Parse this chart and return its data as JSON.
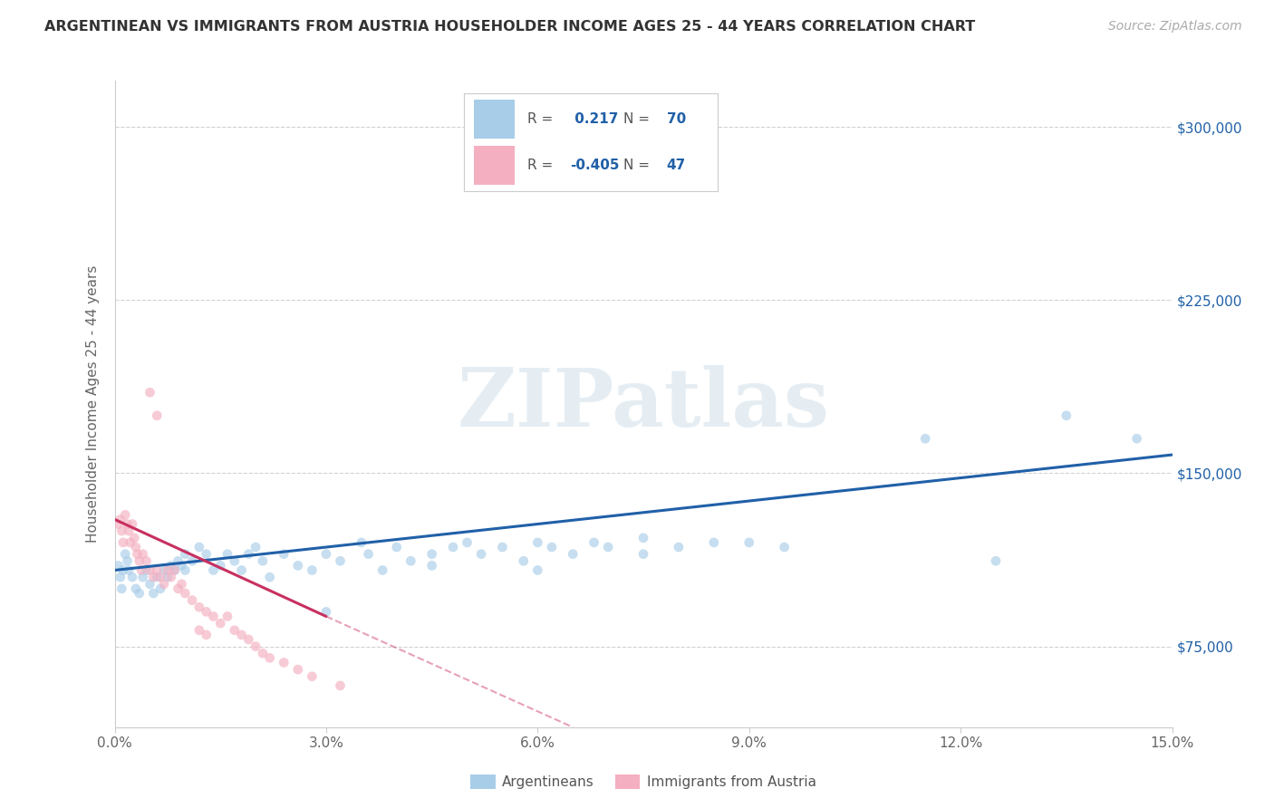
{
  "title": "ARGENTINEAN VS IMMIGRANTS FROM AUSTRIA HOUSEHOLDER INCOME AGES 25 - 44 YEARS CORRELATION CHART",
  "source": "Source: ZipAtlas.com",
  "ylabel": "Householder Income Ages 25 - 44 years",
  "xlim": [
    0.0,
    15.0
  ],
  "ylim": [
    40000,
    320000
  ],
  "yticks": [
    75000,
    150000,
    225000,
    300000
  ],
  "ytick_labels": [
    "$75,000",
    "$150,000",
    "$225,000",
    "$300,000"
  ],
  "xticks": [
    0.0,
    3.0,
    6.0,
    9.0,
    12.0,
    15.0
  ],
  "xtick_labels": [
    "0.0%",
    "3.0%",
    "6.0%",
    "9.0%",
    "12.0%",
    "15.0%"
  ],
  "r_blue": 0.217,
  "n_blue": 70,
  "r_pink": -0.405,
  "n_pink": 47,
  "blue_color": "#a8cde8",
  "pink_color": "#f4afc0",
  "blue_line_color": "#2060a8",
  "pink_line_color": "#c83060",
  "watermark_text": "ZIPatlas",
  "background_color": "#ffffff",
  "legend_label_blue": "Argentineans",
  "legend_label_pink": "Immigrants from Austria",
  "blue_scatter_x": [
    0.05,
    0.08,
    0.1,
    0.12,
    0.15,
    0.18,
    0.2,
    0.25,
    0.3,
    0.35,
    0.4,
    0.45,
    0.5,
    0.55,
    0.6,
    0.65,
    0.7,
    0.75,
    0.8,
    0.85,
    0.9,
    0.95,
    1.0,
    1.0,
    1.1,
    1.2,
    1.3,
    1.4,
    1.5,
    1.6,
    1.7,
    1.8,
    1.9,
    2.0,
    2.1,
    2.2,
    2.4,
    2.6,
    2.8,
    3.0,
    3.2,
    3.5,
    3.6,
    3.8,
    4.0,
    4.2,
    4.5,
    4.8,
    5.0,
    5.2,
    5.5,
    5.8,
    6.0,
    6.2,
    6.5,
    6.8,
    7.0,
    7.5,
    8.0,
    8.5,
    3.0,
    4.5,
    6.0,
    7.5,
    9.0,
    11.5,
    13.5,
    14.5,
    9.5,
    12.5
  ],
  "blue_scatter_y": [
    110000,
    105000,
    100000,
    108000,
    115000,
    112000,
    108000,
    105000,
    100000,
    98000,
    105000,
    108000,
    102000,
    98000,
    105000,
    100000,
    108000,
    105000,
    110000,
    108000,
    112000,
    110000,
    115000,
    108000,
    112000,
    118000,
    115000,
    108000,
    110000,
    115000,
    112000,
    108000,
    115000,
    118000,
    112000,
    105000,
    115000,
    110000,
    108000,
    115000,
    112000,
    120000,
    115000,
    108000,
    118000,
    112000,
    115000,
    118000,
    120000,
    115000,
    118000,
    112000,
    120000,
    118000,
    115000,
    120000,
    118000,
    122000,
    118000,
    120000,
    90000,
    110000,
    108000,
    115000,
    120000,
    165000,
    175000,
    165000,
    118000,
    112000
  ],
  "blue_scatter_size": [
    60,
    60,
    60,
    60,
    60,
    60,
    60,
    60,
    60,
    60,
    60,
    60,
    60,
    60,
    60,
    60,
    60,
    60,
    60,
    60,
    60,
    60,
    60,
    60,
    60,
    60,
    60,
    60,
    60,
    60,
    60,
    60,
    60,
    60,
    60,
    60,
    60,
    60,
    60,
    60,
    60,
    60,
    60,
    60,
    60,
    60,
    60,
    60,
    60,
    60,
    60,
    60,
    60,
    60,
    60,
    60,
    60,
    60,
    60,
    60,
    60,
    60,
    60,
    60,
    60,
    60,
    60,
    60,
    60,
    60
  ],
  "pink_scatter_x": [
    0.05,
    0.08,
    0.1,
    0.12,
    0.15,
    0.18,
    0.2,
    0.22,
    0.25,
    0.28,
    0.3,
    0.32,
    0.35,
    0.38,
    0.4,
    0.45,
    0.5,
    0.55,
    0.6,
    0.65,
    0.7,
    0.75,
    0.8,
    0.85,
    0.9,
    0.95,
    1.0,
    1.1,
    1.2,
    1.3,
    1.4,
    1.5,
    1.6,
    1.7,
    1.8,
    1.9,
    2.0,
    2.1,
    2.2,
    2.4,
    2.6,
    2.8,
    3.2,
    1.2,
    1.3,
    0.5,
    0.6
  ],
  "pink_scatter_y": [
    128000,
    130000,
    125000,
    120000,
    132000,
    128000,
    125000,
    120000,
    128000,
    122000,
    118000,
    115000,
    112000,
    108000,
    115000,
    112000,
    108000,
    105000,
    108000,
    105000,
    102000,
    108000,
    105000,
    108000,
    100000,
    102000,
    98000,
    95000,
    92000,
    90000,
    88000,
    85000,
    88000,
    82000,
    80000,
    78000,
    75000,
    72000,
    70000,
    68000,
    65000,
    62000,
    58000,
    82000,
    80000,
    185000,
    175000
  ],
  "pink_scatter_size": [
    60,
    60,
    60,
    60,
    60,
    60,
    60,
    60,
    60,
    60,
    60,
    60,
    60,
    60,
    60,
    60,
    60,
    60,
    60,
    60,
    60,
    60,
    60,
    60,
    60,
    60,
    60,
    60,
    60,
    60,
    60,
    60,
    60,
    60,
    60,
    60,
    60,
    60,
    60,
    60,
    60,
    60,
    60,
    60,
    60,
    60,
    60
  ],
  "blue_trend_x0": 0.0,
  "blue_trend_y0": 108000,
  "blue_trend_x1": 15.0,
  "blue_trend_y1": 158000,
  "pink_trend_x0": 0.0,
  "pink_trend_y0": 130000,
  "pink_trend_x1": 3.0,
  "pink_trend_y1": 88000,
  "pink_dash_x0": 3.0,
  "pink_dash_y0": 88000,
  "pink_dash_x1": 6.5,
  "pink_dash_y1": 40000
}
